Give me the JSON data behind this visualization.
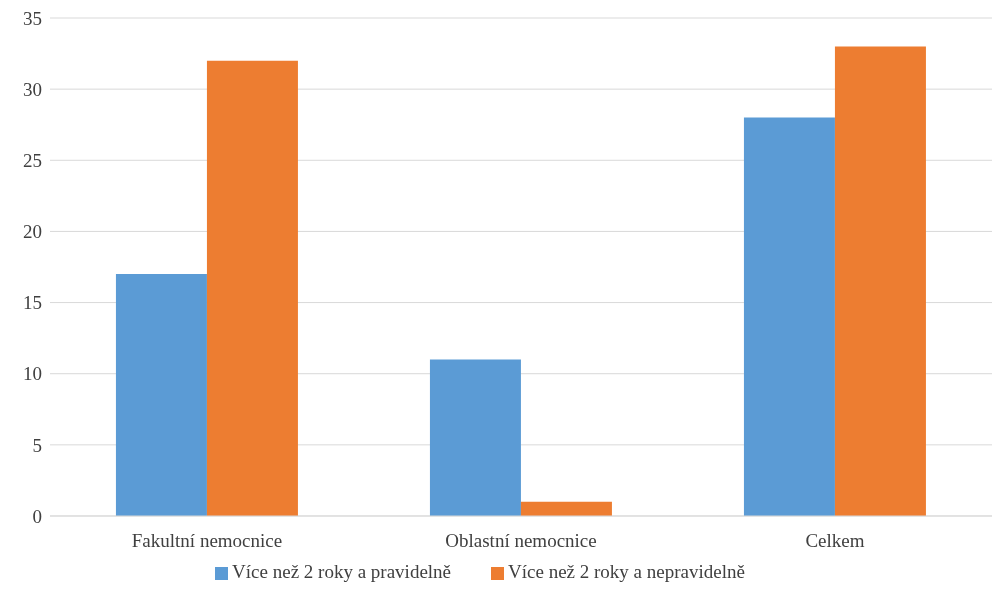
{
  "chart_data": {
    "type": "bar",
    "categories": [
      "Fakultní nemocnice",
      "Oblastní nemocnice",
      "Celkem"
    ],
    "series": [
      {
        "name": "Více než 2 roky a pravidelně",
        "color": "#5b9bd5",
        "values": [
          17,
          11,
          28
        ]
      },
      {
        "name": "Více než 2 roky a nepravidelně",
        "color": "#ed7d31",
        "values": [
          32,
          1,
          33
        ]
      }
    ],
    "ylim": [
      0,
      35
    ],
    "yticks": [
      0,
      5,
      10,
      15,
      20,
      25,
      30,
      35
    ],
    "grid": "y",
    "legend": "bottom"
  }
}
